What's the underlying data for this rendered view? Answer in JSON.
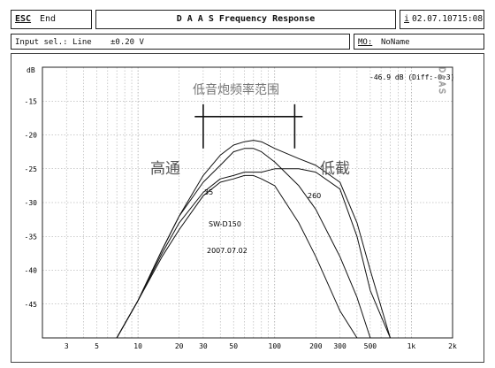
{
  "header": {
    "esc_label": "ESC",
    "end_label": "End",
    "title": "D A A S  Frequency Response",
    "info_icon_glyph": "i",
    "datetime": "02.07.10715:08"
  },
  "status": {
    "input_text": "Input sel.: Line",
    "level_text": "±0.20 V",
    "mo_label": "MO:",
    "name": "NoName"
  },
  "chart_data": {
    "type": "line",
    "title": "",
    "xlabel": "",
    "ylabel": "dB",
    "xscale": "log",
    "xlim": [
      2,
      2000
    ],
    "ylim": [
      -50,
      -10
    ],
    "grid": true,
    "y_ticks": [
      "-15",
      "-20",
      "-25",
      "-30",
      "-35",
      "-40",
      "-45"
    ],
    "x_ticks": [
      "3",
      "5",
      "10",
      "20",
      "30",
      "50",
      "100",
      "200",
      "300",
      "500",
      "1k",
      "2k"
    ],
    "readout": "-46.9 dB (Diff:-0.3)",
    "watermark": "DAAS",
    "annotations": {
      "range_label": "低音炮频率范围",
      "highpass_label": "高通",
      "lowcut_label": "低截",
      "label_35": "35",
      "label_260": "260",
      "model": "SW-D150",
      "date": "2007.07.02"
    },
    "range_marker": {
      "x_from": 26,
      "x_to": 160,
      "y": -17.3,
      "ticks_at": [
        30,
        140
      ],
      "tick_to_y": -22
    },
    "series": [
      {
        "x": [
          7,
          10,
          15,
          20,
          30,
          40,
          50,
          60,
          70,
          80,
          100,
          150,
          200,
          300,
          400,
          500,
          700
        ],
        "y": [
          -50,
          -44.5,
          -37,
          -32,
          -26,
          -23,
          -21.5,
          -21,
          -20.8,
          -21,
          -22,
          -23.5,
          -24.5,
          -27,
          -33,
          -40,
          -50
        ]
      },
      {
        "x": [
          7,
          10,
          15,
          20,
          30,
          40,
          50,
          60,
          70,
          80,
          100,
          150,
          200,
          300,
          400,
          500,
          700
        ],
        "y": [
          -50,
          -44.5,
          -37,
          -32,
          -27,
          -24.5,
          -22.5,
          -22,
          -22,
          -22.5,
          -24,
          -27.5,
          -31,
          -38,
          -44,
          -50,
          -50
        ]
      },
      {
        "x": [
          7,
          10,
          15,
          20,
          30,
          40,
          50,
          60,
          70,
          80,
          100,
          150,
          200,
          300,
          400,
          500,
          700
        ],
        "y": [
          -50,
          -44.5,
          -37.5,
          -33,
          -28.5,
          -26.5,
          -26,
          -25.5,
          -25.5,
          -25.5,
          -25,
          -25,
          -25.5,
          -28,
          -35,
          -43,
          -50
        ]
      },
      {
        "x": [
          7,
          10,
          15,
          20,
          30,
          40,
          50,
          60,
          70,
          80,
          100,
          150,
          200,
          300,
          400,
          500,
          700
        ],
        "y": [
          -50,
          -44.5,
          -38,
          -34,
          -29,
          -27,
          -26.5,
          -26,
          -26,
          -26.5,
          -27.5,
          -33,
          -38,
          -46,
          -50,
          -50,
          -50
        ]
      }
    ]
  }
}
